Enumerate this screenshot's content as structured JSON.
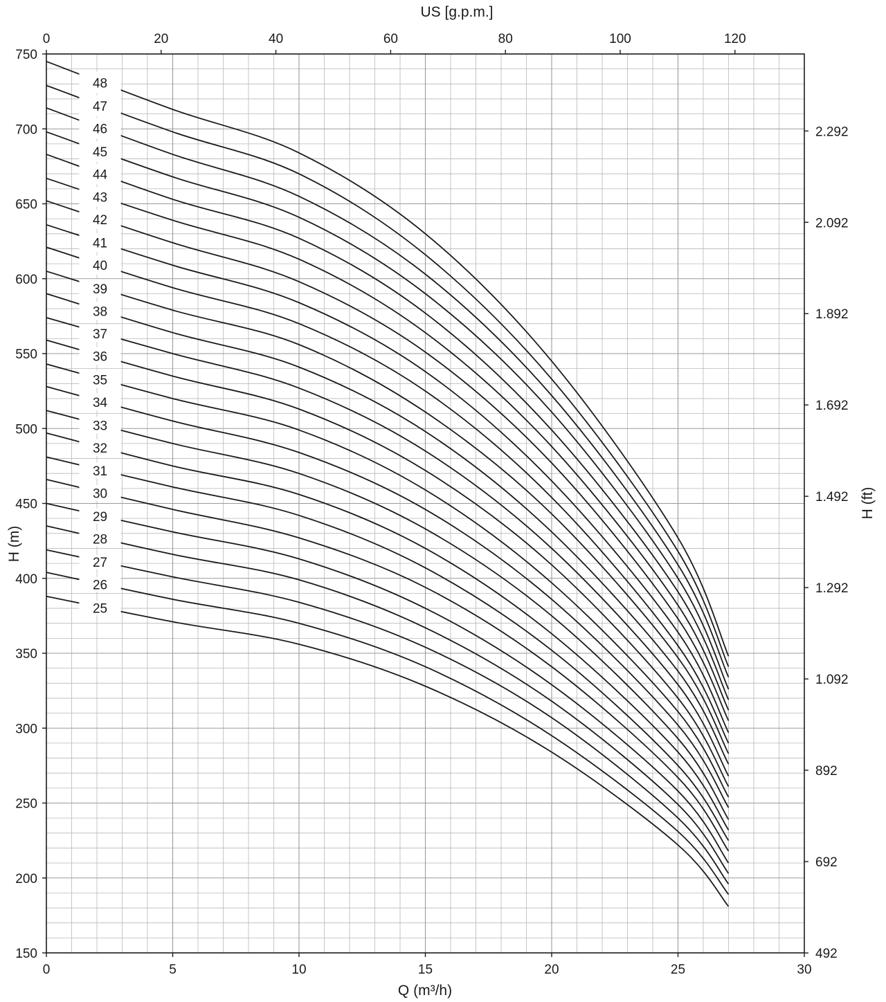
{
  "chart_data": {
    "type": "line",
    "title": "",
    "xlabel": "Q (m³/h)",
    "ylabel": "H (m)",
    "x2label": "US [g.p.m.]",
    "y2label": "H (ft)",
    "xlim": [
      0,
      30
    ],
    "ylim": [
      150,
      750
    ],
    "x_ticks": [
      "0",
      "5",
      "10",
      "15",
      "20",
      "25",
      "30"
    ],
    "y_ticks": [
      "150",
      "200",
      "250",
      "300",
      "350",
      "400",
      "450",
      "500",
      "550",
      "600",
      "650",
      "700",
      "750"
    ],
    "x2_ticks": [
      "0",
      "20",
      "40",
      "60",
      "80",
      "100",
      "120"
    ],
    "x2_tick_gpm": [
      0,
      20,
      40,
      60,
      80,
      100,
      120
    ],
    "y2_ticks": [
      "492",
      "692",
      "892",
      "1.092",
      "1.292",
      "1.492",
      "1.692",
      "1.892",
      "2.092",
      "2.292"
    ],
    "y2_tick_ft": [
      492,
      692,
      892,
      1092,
      1292,
      1492,
      1692,
      1892,
      2092,
      2292
    ],
    "grid": true,
    "colors": {
      "curve": "#1a1a1a",
      "grid": "#b8b8b8",
      "frame": "#1a1a1a"
    },
    "series": [
      {
        "name": "25",
        "values": [
          [
            0,
            388
          ],
          [
            5,
            371
          ],
          [
            10,
            356
          ],
          [
            15,
            328
          ],
          [
            20,
            284
          ],
          [
            25,
            222
          ],
          [
            27,
            181
          ]
        ]
      },
      {
        "name": "26",
        "values": [
          [
            0,
            404
          ],
          [
            5,
            386
          ],
          [
            10,
            370
          ],
          [
            15,
            341
          ],
          [
            20,
            295
          ],
          [
            25,
            231
          ],
          [
            27,
            189
          ]
        ]
      },
      {
        "name": "27",
        "values": [
          [
            0,
            419
          ],
          [
            5,
            401
          ],
          [
            10,
            384
          ],
          [
            15,
            354
          ],
          [
            20,
            307
          ],
          [
            25,
            240
          ],
          [
            27,
            196
          ]
        ]
      },
      {
        "name": "28",
        "values": [
          [
            0,
            435
          ],
          [
            5,
            416
          ],
          [
            10,
            399
          ],
          [
            15,
            367
          ],
          [
            20,
            318
          ],
          [
            25,
            249
          ],
          [
            27,
            203
          ]
        ]
      },
      {
        "name": "29",
        "values": [
          [
            0,
            450
          ],
          [
            5,
            431
          ],
          [
            10,
            413
          ],
          [
            15,
            380
          ],
          [
            20,
            329
          ],
          [
            25,
            258
          ],
          [
            27,
            210
          ]
        ]
      },
      {
        "name": "30",
        "values": [
          [
            0,
            466
          ],
          [
            5,
            446
          ],
          [
            10,
            427
          ],
          [
            15,
            394
          ],
          [
            20,
            341
          ],
          [
            25,
            267
          ],
          [
            27,
            218
          ]
        ]
      },
      {
        "name": "31",
        "values": [
          [
            0,
            481
          ],
          [
            5,
            461
          ],
          [
            10,
            442
          ],
          [
            15,
            407
          ],
          [
            20,
            352
          ],
          [
            25,
            275
          ],
          [
            27,
            225
          ]
        ]
      },
      {
        "name": "32",
        "values": [
          [
            0,
            497
          ],
          [
            5,
            475
          ],
          [
            10,
            456
          ],
          [
            15,
            420
          ],
          [
            20,
            363
          ],
          [
            25,
            284
          ],
          [
            27,
            232
          ]
        ]
      },
      {
        "name": "33",
        "values": [
          [
            0,
            512
          ],
          [
            5,
            490
          ],
          [
            10,
            470
          ],
          [
            15,
            433
          ],
          [
            20,
            375
          ],
          [
            25,
            293
          ],
          [
            27,
            239
          ]
        ]
      },
      {
        "name": "34",
        "values": [
          [
            0,
            528
          ],
          [
            5,
            505
          ],
          [
            10,
            484
          ],
          [
            15,
            446
          ],
          [
            20,
            386
          ],
          [
            25,
            302
          ],
          [
            27,
            247
          ]
        ]
      },
      {
        "name": "35",
        "values": [
          [
            0,
            543
          ],
          [
            5,
            520
          ],
          [
            10,
            499
          ],
          [
            15,
            459
          ],
          [
            20,
            397
          ],
          [
            25,
            311
          ],
          [
            27,
            254
          ]
        ]
      },
      {
        "name": "36",
        "values": [
          [
            0,
            559
          ],
          [
            5,
            535
          ],
          [
            10,
            513
          ],
          [
            15,
            472
          ],
          [
            20,
            409
          ],
          [
            25,
            320
          ],
          [
            27,
            261
          ]
        ]
      },
      {
        "name": "37",
        "values": [
          [
            0,
            574
          ],
          [
            5,
            550
          ],
          [
            10,
            527
          ],
          [
            15,
            485
          ],
          [
            20,
            420
          ],
          [
            25,
            329
          ],
          [
            27,
            268
          ]
        ]
      },
      {
        "name": "38",
        "values": [
          [
            0,
            590
          ],
          [
            5,
            564
          ],
          [
            10,
            541
          ],
          [
            15,
            498
          ],
          [
            20,
            431
          ],
          [
            25,
            338
          ],
          [
            27,
            276
          ]
        ]
      },
      {
        "name": "39",
        "values": [
          [
            0,
            605
          ],
          [
            5,
            579
          ],
          [
            10,
            556
          ],
          [
            15,
            511
          ],
          [
            20,
            443
          ],
          [
            25,
            347
          ],
          [
            27,
            283
          ]
        ]
      },
      {
        "name": "40",
        "values": [
          [
            0,
            621
          ],
          [
            5,
            594
          ],
          [
            10,
            570
          ],
          [
            15,
            525
          ],
          [
            20,
            454
          ],
          [
            25,
            355
          ],
          [
            27,
            290
          ]
        ]
      },
      {
        "name": "41",
        "values": [
          [
            0,
            636
          ],
          [
            5,
            609
          ],
          [
            10,
            584
          ],
          [
            15,
            538
          ],
          [
            20,
            465
          ],
          [
            25,
            364
          ],
          [
            27,
            297
          ]
        ]
      },
      {
        "name": "42",
        "values": [
          [
            0,
            652
          ],
          [
            5,
            624
          ],
          [
            10,
            598
          ],
          [
            15,
            551
          ],
          [
            20,
            477
          ],
          [
            25,
            373
          ],
          [
            27,
            305
          ]
        ]
      },
      {
        "name": "43",
        "values": [
          [
            0,
            667
          ],
          [
            5,
            639
          ],
          [
            10,
            613
          ],
          [
            15,
            564
          ],
          [
            20,
            488
          ],
          [
            25,
            382
          ],
          [
            27,
            312
          ]
        ]
      },
      {
        "name": "44",
        "values": [
          [
            0,
            683
          ],
          [
            5,
            653
          ],
          [
            10,
            627
          ],
          [
            15,
            577
          ],
          [
            20,
            499
          ],
          [
            25,
            391
          ],
          [
            27,
            319
          ]
        ]
      },
      {
        "name": "45",
        "values": [
          [
            0,
            698
          ],
          [
            5,
            668
          ],
          [
            10,
            641
          ],
          [
            15,
            590
          ],
          [
            20,
            511
          ],
          [
            25,
            400
          ],
          [
            27,
            326
          ]
        ]
      },
      {
        "name": "46",
        "values": [
          [
            0,
            714
          ],
          [
            5,
            683
          ],
          [
            10,
            655
          ],
          [
            15,
            603
          ],
          [
            20,
            522
          ],
          [
            25,
            409
          ],
          [
            27,
            334
          ]
        ]
      },
      {
        "name": "47",
        "values": [
          [
            0,
            729
          ],
          [
            5,
            698
          ],
          [
            10,
            670
          ],
          [
            15,
            616
          ],
          [
            20,
            533
          ],
          [
            25,
            418
          ],
          [
            27,
            341
          ]
        ]
      },
      {
        "name": "48",
        "values": [
          [
            0,
            745
          ],
          [
            5,
            713
          ],
          [
            10,
            684
          ],
          [
            15,
            630
          ],
          [
            20,
            545
          ],
          [
            25,
            427
          ],
          [
            27,
            348
          ]
        ]
      }
    ]
  }
}
